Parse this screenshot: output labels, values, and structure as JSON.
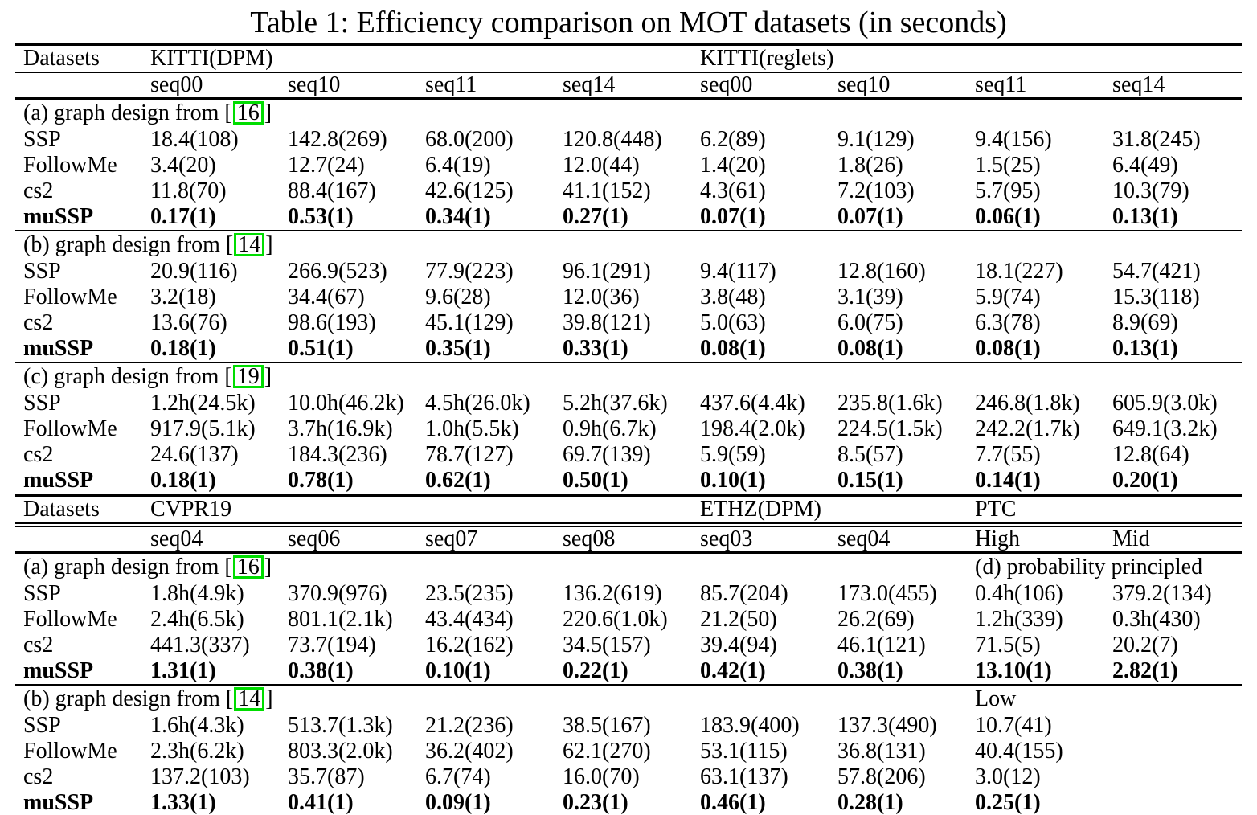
{
  "title": "Table 1: Efficiency comparison on MOT datasets (in seconds)",
  "cite_box_color": "#00dd00",
  "text_color": "#000000",
  "tables": [
    {
      "id": "mot-table-top",
      "datasets_label": "Datasets",
      "groups": [
        {
          "label": "KITTI(DPM)",
          "span": 4
        },
        {
          "label": "KITTI(reglets)",
          "span": 4
        }
      ],
      "columns": [
        "seq00",
        "seq10",
        "seq11",
        "seq14",
        "seq00",
        "seq10",
        "seq11",
        "seq14"
      ],
      "sections": [
        {
          "heading_parts": {
            "before": "(a) graph design from [",
            "cite": "16",
            "after": "]"
          },
          "rows": [
            {
              "label": "SSP",
              "bold": false,
              "cells": [
                "18.4(108)",
                "142.8(269)",
                "68.0(200)",
                "120.8(448)",
                "6.2(89)",
                "9.1(129)",
                "9.4(156)",
                "31.8(245)"
              ]
            },
            {
              "label": "FollowMe",
              "bold": false,
              "cells": [
                "3.4(20)",
                "12.7(24)",
                "6.4(19)",
                "12.0(44)",
                "1.4(20)",
                "1.8(26)",
                "1.5(25)",
                "6.4(49)"
              ]
            },
            {
              "label": "cs2",
              "bold": false,
              "cells": [
                "11.8(70)",
                "88.4(167)",
                "42.6(125)",
                "41.1(152)",
                "4.3(61)",
                "7.2(103)",
                "5.7(95)",
                "10.3(79)"
              ]
            },
            {
              "label": "muSSP",
              "bold": true,
              "cells": [
                "0.17(1)",
                "0.53(1)",
                "0.34(1)",
                "0.27(1)",
                "0.07(1)",
                "0.07(1)",
                "0.06(1)",
                "0.13(1)"
              ]
            }
          ]
        },
        {
          "heading_parts": {
            "before": "(b) graph design from [",
            "cite": "14",
            "after": "]"
          },
          "rows": [
            {
              "label": "SSP",
              "bold": false,
              "cells": [
                "20.9(116)",
                "266.9(523)",
                "77.9(223)",
                "96.1(291)",
                "9.4(117)",
                "12.8(160)",
                "18.1(227)",
                "54.7(421)"
              ]
            },
            {
              "label": "FollowMe",
              "bold": false,
              "cells": [
                "3.2(18)",
                "34.4(67)",
                "9.6(28)",
                "12.0(36)",
                "3.8(48)",
                "3.1(39)",
                "5.9(74)",
                "15.3(118)"
              ]
            },
            {
              "label": "cs2",
              "bold": false,
              "cells": [
                "13.6(76)",
                "98.6(193)",
                "45.1(129)",
                "39.8(121)",
                "5.0(63)",
                "6.0(75)",
                "6.3(78)",
                "8.9(69)"
              ]
            },
            {
              "label": "muSSP",
              "bold": true,
              "cells": [
                "0.18(1)",
                "0.51(1)",
                "0.35(1)",
                "0.33(1)",
                "0.08(1)",
                "0.08(1)",
                "0.08(1)",
                "0.13(1)"
              ]
            }
          ]
        },
        {
          "heading_parts": {
            "before": "(c) graph design from [",
            "cite": "19",
            "after": "]"
          },
          "rows": [
            {
              "label": "SSP",
              "bold": false,
              "cells": [
                "1.2h(24.5k)",
                "10.0h(46.2k)",
                "4.5h(26.0k)",
                "5.2h(37.6k)",
                "437.6(4.4k)",
                "235.8(1.6k)",
                "246.8(1.8k)",
                "605.9(3.0k)"
              ]
            },
            {
              "label": "FollowMe",
              "bold": false,
              "cells": [
                "917.9(5.1k)",
                "3.7h(16.9k)",
                "1.0h(5.5k)",
                "0.9h(6.7k)",
                "198.4(2.0k)",
                "224.5(1.5k)",
                "242.2(1.7k)",
                "649.1(3.2k)"
              ]
            },
            {
              "label": "cs2",
              "bold": false,
              "cells": [
                "24.6(137)",
                "184.3(236)",
                "78.7(127)",
                "69.7(139)",
                "5.9(59)",
                "8.5(57)",
                "7.7(55)",
                "12.8(64)"
              ]
            },
            {
              "label": "muSSP",
              "bold": true,
              "cells": [
                "0.18(1)",
                "0.78(1)",
                "0.62(1)",
                "0.50(1)",
                "0.10(1)",
                "0.15(1)",
                "0.14(1)",
                "0.20(1)"
              ]
            }
          ]
        }
      ]
    },
    {
      "id": "mot-table-bottom",
      "datasets_label": "Datasets",
      "groups": [
        {
          "label": "CVPR19",
          "span": 4
        },
        {
          "label": "ETHZ(DPM)",
          "span": 2
        },
        {
          "label": "PTC",
          "span": 2
        }
      ],
      "columns": [
        "seq04",
        "seq06",
        "seq07",
        "seq08",
        "seq03",
        "seq04",
        "High",
        "Mid"
      ],
      "sections": [
        {
          "heading_parts": {
            "before": "(a) graph design from [",
            "cite": "16",
            "after": "]"
          },
          "heading_note": {
            "text": "(d) probability principled",
            "span": 2,
            "align": "left"
          },
          "rows": [
            {
              "label": "SSP",
              "bold": false,
              "cells": [
                "1.8h(4.9k)",
                "370.9(976)",
                "23.5(235)",
                "136.2(619)",
                "85.7(204)",
                "173.0(455)",
                "0.4h(106)",
                "379.2(134)"
              ]
            },
            {
              "label": "FollowMe",
              "bold": false,
              "cells": [
                "2.4h(6.5k)",
                "801.1(2.1k)",
                "43.4(434)",
                "220.6(1.0k)",
                "21.2(50)",
                "26.2(69)",
                "1.2h(339)",
                "0.3h(430)"
              ]
            },
            {
              "label": "cs2",
              "bold": false,
              "cells": [
                "441.3(337)",
                "73.7(194)",
                "16.2(162)",
                "34.5(157)",
                "39.4(94)",
                "46.1(121)",
                "71.5(5)",
                "20.2(7)"
              ]
            },
            {
              "label": "muSSP",
              "bold": true,
              "cells": [
                "1.31(1)",
                "0.38(1)",
                "0.10(1)",
                "0.22(1)",
                "0.42(1)",
                "0.38(1)",
                "13.10(1)",
                "2.82(1)"
              ]
            }
          ]
        },
        {
          "heading_parts": {
            "before": "(b) graph design from [",
            "cite": "14",
            "after": "]"
          },
          "heading_note": {
            "text": "Low",
            "span": 2,
            "align": "center"
          },
          "rows": [
            {
              "label": "SSP",
              "bold": false,
              "cells": [
                "1.6h(4.3k)",
                "513.7(1.3k)",
                "21.2(236)",
                "38.5(167)",
                "183.9(400)",
                "137.3(490)",
                {
                  "text": "10.7(41)",
                  "span": 2,
                  "align": "center"
                }
              ]
            },
            {
              "label": "FollowMe",
              "bold": false,
              "cells": [
                "2.3h(6.2k)",
                "803.3(2.0k)",
                "36.2(402)",
                "62.1(270)",
                "53.1(115)",
                "36.8(131)",
                {
                  "text": "40.4(155)",
                  "span": 2,
                  "align": "center"
                }
              ]
            },
            {
              "label": "cs2",
              "bold": false,
              "cells": [
                "137.2(103)",
                "35.7(87)",
                "6.7(74)",
                "16.0(70)",
                "63.1(137)",
                "57.8(206)",
                {
                  "text": "3.0(12)",
                  "span": 2,
                  "align": "center"
                }
              ]
            },
            {
              "label": "muSSP",
              "bold": true,
              "cells": [
                "1.33(1)",
                "0.41(1)",
                "0.09(1)",
                "0.23(1)",
                "0.46(1)",
                "0.28(1)",
                {
                  "text": "0.25(1)",
                  "span": 2,
                  "align": "center"
                }
              ]
            }
          ]
        }
      ]
    }
  ]
}
